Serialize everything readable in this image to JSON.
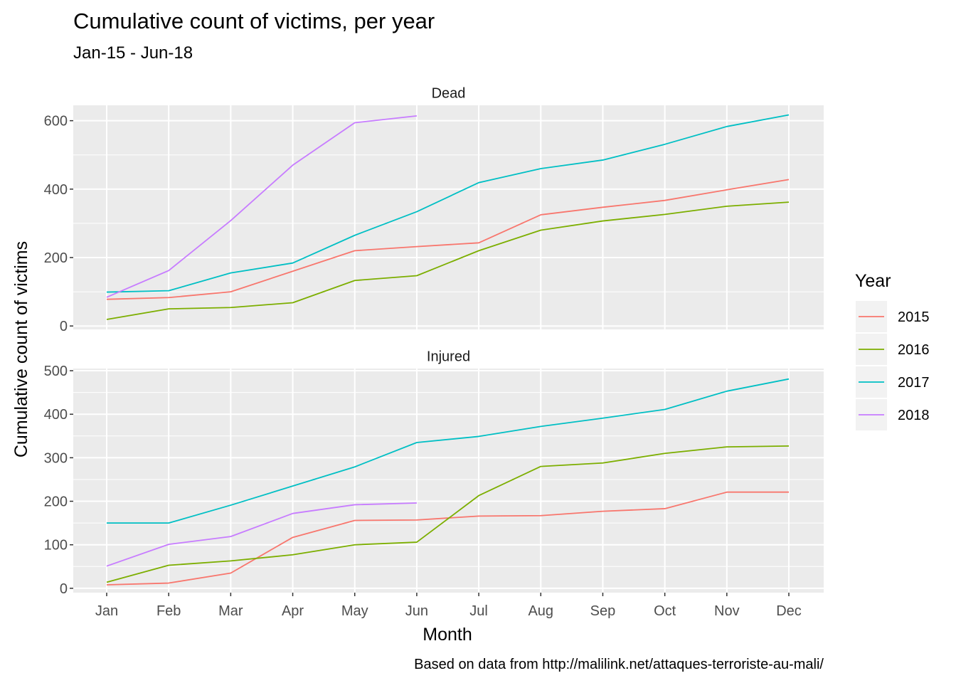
{
  "chart_data": {
    "type": "line",
    "title": "Cumulative count of victims, per year",
    "subtitle": "Jan-15 - Jun-18",
    "xlabel": "Month",
    "ylabel": "Cumulative count of victims",
    "caption": "Based on data from http://malilink.net/attaques-terroriste-au-mali/",
    "legend": {
      "title": "Year",
      "position": "right"
    },
    "grid": true,
    "categories": [
      "Jan",
      "Feb",
      "Mar",
      "Apr",
      "May",
      "Jun",
      "Jul",
      "Aug",
      "Sep",
      "Oct",
      "Nov",
      "Dec"
    ],
    "colors": {
      "2015": "#F8766D",
      "2016": "#7CAE00",
      "2017": "#00BFC4",
      "2018": "#C77CFF"
    },
    "panels": [
      {
        "label": "Dead",
        "ylim": [
          -10,
          645
        ],
        "yticks": [
          0,
          200,
          400,
          600
        ],
        "yminor": [
          100,
          300,
          500
        ],
        "series": [
          {
            "name": "2015",
            "values": [
              78,
              83,
              100,
              160,
              220,
              232,
              243,
              325,
              347,
              367,
              398,
              428
            ]
          },
          {
            "name": "2016",
            "values": [
              19,
              50,
              54,
              68,
              133,
              147,
              220,
              280,
              307,
              326,
              350,
              362
            ]
          },
          {
            "name": "2017",
            "values": [
              99,
              103,
              155,
              184,
              265,
              334,
              419,
              460,
              485,
              531,
              583,
              617
            ]
          },
          {
            "name": "2018",
            "values": [
              84,
              162,
              308,
              470,
              594,
              614
            ]
          }
        ]
      },
      {
        "label": "Injured",
        "ylim": [
          -10,
          505
        ],
        "yticks": [
          0,
          100,
          200,
          300,
          400,
          500
        ],
        "yminor": [
          50,
          150,
          250,
          350,
          450
        ],
        "series": [
          {
            "name": "2015",
            "values": [
              8,
              12,
              35,
              117,
              156,
              157,
              166,
              167,
              177,
              183,
              221,
              221
            ]
          },
          {
            "name": "2016",
            "values": [
              14,
              53,
              63,
              77,
              100,
              106,
              213,
              280,
              288,
              310,
              325,
              327
            ]
          },
          {
            "name": "2017",
            "values": [
              150,
              150,
              191,
              235,
              279,
              335,
              349,
              372,
              391,
              411,
              453,
              481
            ]
          },
          {
            "name": "2018",
            "values": [
              51,
              101,
              119,
              172,
              192,
              196
            ]
          }
        ]
      }
    ]
  }
}
